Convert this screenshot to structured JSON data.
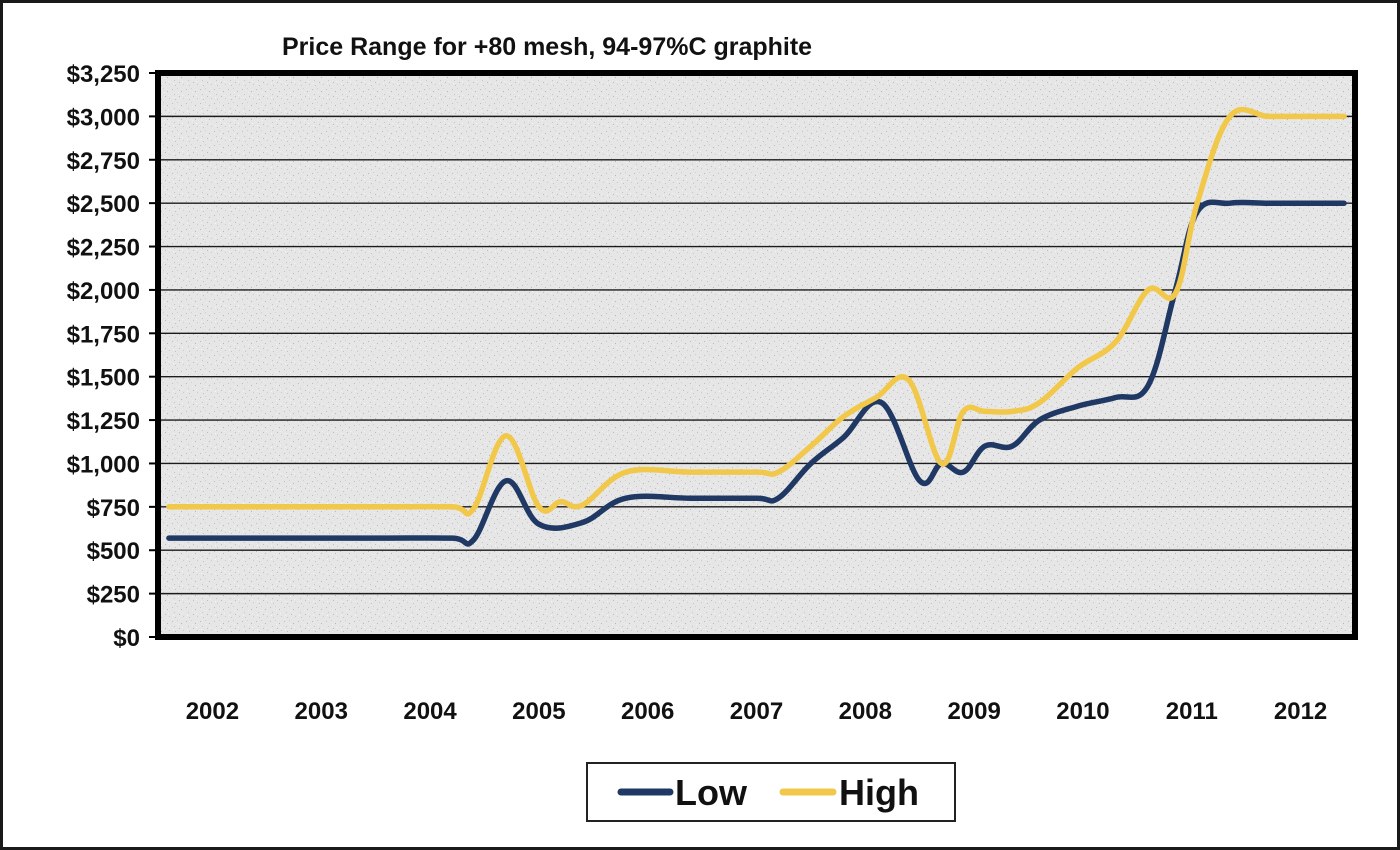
{
  "chart_data": {
    "type": "line",
    "title": "Price Range for +80 mesh, 94-97%C graphite",
    "xlabel": "",
    "ylabel": "",
    "ylim": [
      0,
      3250
    ],
    "y_ticks": [
      {
        "value": 3250,
        "label": "$3,250"
      },
      {
        "value": 3000,
        "label": "$3,000"
      },
      {
        "value": 2750,
        "label": "$2,750"
      },
      {
        "value": 2500,
        "label": "$2,500"
      },
      {
        "value": 2250,
        "label": "$2,250"
      },
      {
        "value": 2000,
        "label": "$2,000"
      },
      {
        "value": 1750,
        "label": "$1,750"
      },
      {
        "value": 1500,
        "label": "$1,500"
      },
      {
        "value": 1250,
        "label": "$1,250"
      },
      {
        "value": 1000,
        "label": "$1,000"
      },
      {
        "value": 750,
        "label": "$750"
      },
      {
        "value": 500,
        "label": "$500"
      },
      {
        "value": 250,
        "label": "$250"
      },
      {
        "value": 0,
        "label": "$0"
      }
    ],
    "x_range": [
      2002,
      2013
    ],
    "x_ticks": [
      {
        "value": 2002.5,
        "label": "2002"
      },
      {
        "value": 2003.5,
        "label": "2003"
      },
      {
        "value": 2004.5,
        "label": "2004"
      },
      {
        "value": 2005.5,
        "label": "2005"
      },
      {
        "value": 2006.5,
        "label": "2006"
      },
      {
        "value": 2007.5,
        "label": "2007"
      },
      {
        "value": 2008.5,
        "label": "2008"
      },
      {
        "value": 2009.5,
        "label": "2009"
      },
      {
        "value": 2010.5,
        "label": "2010"
      },
      {
        "value": 2011.5,
        "label": "2011"
      },
      {
        "value": 2012.5,
        "label": "2012"
      }
    ],
    "grid": true,
    "legend_position": "bottom-center",
    "series": [
      {
        "name": "Low",
        "color": "#1f3864",
        "x": [
          2002.1,
          2003.0,
          2004.0,
          2004.7,
          2004.9,
          2005.2,
          2005.5,
          2005.9,
          2006.3,
          2006.9,
          2007.5,
          2007.7,
          2008.0,
          2008.3,
          2008.65,
          2009.0,
          2009.2,
          2009.4,
          2009.6,
          2009.85,
          2010.1,
          2010.45,
          2010.8,
          2011.1,
          2011.35,
          2011.55,
          2011.85,
          2012.2,
          2012.5,
          2012.9
        ],
        "y": [
          570,
          570,
          570,
          570,
          560,
          900,
          650,
          660,
          800,
          800,
          800,
          800,
          1000,
          1150,
          1350,
          900,
          1000,
          950,
          1100,
          1100,
          1250,
          1330,
          1380,
          1450,
          2000,
          2450,
          2500,
          2500,
          2500,
          2500
        ]
      },
      {
        "name": "High",
        "color": "#f2c84b",
        "x": [
          2002.1,
          2003.0,
          2004.0,
          2004.7,
          2004.9,
          2005.2,
          2005.5,
          2005.7,
          2005.9,
          2006.3,
          2006.9,
          2007.5,
          2007.7,
          2008.0,
          2008.3,
          2008.6,
          2008.9,
          2009.2,
          2009.4,
          2009.6,
          2009.85,
          2010.1,
          2010.45,
          2010.8,
          2011.1,
          2011.35,
          2011.55,
          2011.85,
          2012.2,
          2012.5,
          2012.9
        ],
        "y": [
          750,
          750,
          750,
          750,
          740,
          1160,
          750,
          780,
          760,
          950,
          950,
          950,
          950,
          1100,
          1270,
          1380,
          1480,
          1000,
          1300,
          1300,
          1300,
          1350,
          1550,
          1700,
          2000,
          1980,
          2500,
          3000,
          3000,
          3000,
          3000
        ]
      }
    ]
  }
}
